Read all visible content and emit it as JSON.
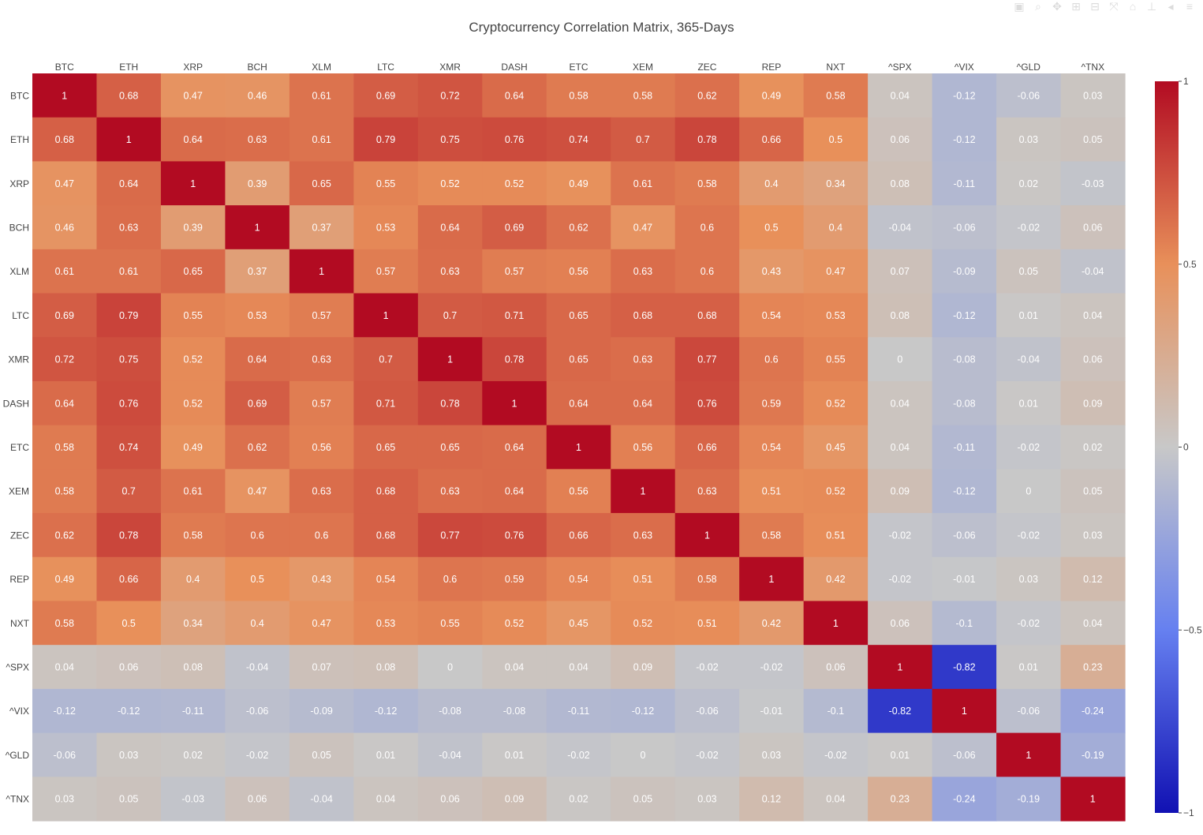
{
  "title": "Cryptocurrency Correlation Matrix, 365-Days",
  "modebar": {
    "icons": [
      "camera-icon",
      "zoom-icon",
      "pan-icon",
      "zoom-in-icon",
      "zoom-out-icon",
      "autoscale-icon",
      "home-icon",
      "spike-lines-icon",
      "hover-closest-icon",
      "hover-compare-icon"
    ]
  },
  "chart_data": {
    "type": "heatmap",
    "title": "Cryptocurrency Correlation Matrix, 365-Days",
    "x": [
      "BTC",
      "ETH",
      "XRP",
      "BCH",
      "XLM",
      "LTC",
      "XMR",
      "DASH",
      "ETC",
      "XEM",
      "ZEC",
      "REP",
      "NXT",
      "^SPX",
      "^VIX",
      "^GLD",
      "^TNX"
    ],
    "y": [
      "BTC",
      "ETH",
      "XRP",
      "BCH",
      "XLM",
      "LTC",
      "XMR",
      "DASH",
      "ETC",
      "XEM",
      "ZEC",
      "REP",
      "NXT",
      "^SPX",
      "^VIX",
      "^GLD",
      "^TNX"
    ],
    "z": [
      [
        1,
        0.68,
        0.47,
        0.46,
        0.61,
        0.69,
        0.72,
        0.64,
        0.58,
        0.58,
        0.62,
        0.49,
        0.58,
        0.04,
        -0.12,
        -0.06,
        0.03
      ],
      [
        0.68,
        1,
        0.64,
        0.63,
        0.61,
        0.79,
        0.75,
        0.76,
        0.74,
        0.7,
        0.78,
        0.66,
        0.5,
        0.06,
        -0.12,
        0.03,
        0.05
      ],
      [
        0.47,
        0.64,
        1,
        0.39,
        0.65,
        0.55,
        0.52,
        0.52,
        0.49,
        0.61,
        0.58,
        0.4,
        0.34,
        0.08,
        -0.11,
        0.02,
        -0.03
      ],
      [
        0.46,
        0.63,
        0.39,
        1,
        0.37,
        0.53,
        0.64,
        0.69,
        0.62,
        0.47,
        0.6,
        0.5,
        0.4,
        -0.04,
        -0.06,
        -0.02,
        0.06
      ],
      [
        0.61,
        0.61,
        0.65,
        0.37,
        1,
        0.57,
        0.63,
        0.57,
        0.56,
        0.63,
        0.6,
        0.43,
        0.47,
        0.07,
        -0.09,
        0.05,
        -0.04
      ],
      [
        0.69,
        0.79,
        0.55,
        0.53,
        0.57,
        1,
        0.7,
        0.71,
        0.65,
        0.68,
        0.68,
        0.54,
        0.53,
        0.08,
        -0.12,
        0.01,
        0.04
      ],
      [
        0.72,
        0.75,
        0.52,
        0.64,
        0.63,
        0.7,
        1,
        0.78,
        0.65,
        0.63,
        0.77,
        0.6,
        0.55,
        0,
        -0.08,
        -0.04,
        0.06
      ],
      [
        0.64,
        0.76,
        0.52,
        0.69,
        0.57,
        0.71,
        0.78,
        1,
        0.64,
        0.64,
        0.76,
        0.59,
        0.52,
        0.04,
        -0.08,
        0.01,
        0.09
      ],
      [
        0.58,
        0.74,
        0.49,
        0.62,
        0.56,
        0.65,
        0.65,
        0.64,
        1,
        0.56,
        0.66,
        0.54,
        0.45,
        0.04,
        -0.11,
        -0.02,
        0.02
      ],
      [
        0.58,
        0.7,
        0.61,
        0.47,
        0.63,
        0.68,
        0.63,
        0.64,
        0.56,
        1,
        0.63,
        0.51,
        0.52,
        0.09,
        -0.12,
        0,
        0.05
      ],
      [
        0.62,
        0.78,
        0.58,
        0.6,
        0.6,
        0.68,
        0.77,
        0.76,
        0.66,
        0.63,
        1,
        0.58,
        0.51,
        -0.02,
        -0.06,
        -0.02,
        0.03
      ],
      [
        0.49,
        0.66,
        0.4,
        0.5,
        0.43,
        0.54,
        0.6,
        0.59,
        0.54,
        0.51,
        0.58,
        1,
        0.42,
        -0.02,
        -0.01,
        0.03,
        0.12
      ],
      [
        0.58,
        0.5,
        0.34,
        0.4,
        0.47,
        0.53,
        0.55,
        0.52,
        0.45,
        0.52,
        0.51,
        0.42,
        1,
        0.06,
        -0.1,
        -0.02,
        0.04
      ],
      [
        0.04,
        0.06,
        0.08,
        -0.04,
        0.07,
        0.08,
        0,
        0.04,
        0.04,
        0.09,
        -0.02,
        -0.02,
        0.06,
        1,
        -0.82,
        0.01,
        0.23
      ],
      [
        -0.12,
        -0.12,
        -0.11,
        -0.06,
        -0.09,
        -0.12,
        -0.08,
        -0.08,
        -0.11,
        -0.12,
        -0.06,
        -0.01,
        -0.1,
        -0.82,
        1,
        -0.06,
        -0.24
      ],
      [
        -0.06,
        0.03,
        0.02,
        -0.02,
        0.05,
        0.01,
        -0.04,
        0.01,
        -0.02,
        0,
        -0.02,
        0.03,
        -0.02,
        0.01,
        -0.06,
        1,
        -0.19
      ],
      [
        0.03,
        0.05,
        -0.03,
        0.06,
        -0.04,
        0.04,
        0.06,
        0.09,
        0.02,
        0.05,
        0.03,
        0.12,
        0.04,
        0.23,
        -0.24,
        -0.19,
        1
      ]
    ],
    "zrange": [
      -1,
      1
    ],
    "colorscale": [
      [
        0,
        "#1111b3"
      ],
      [
        0.25,
        "#6680f0"
      ],
      [
        0.5,
        "#c8c8c8"
      ],
      [
        0.75,
        "#e8905a"
      ],
      [
        1,
        "#b20b22"
      ]
    ],
    "colorbar": {
      "ticks": [
        1,
        0.5,
        0,
        -0.5,
        -1
      ],
      "tick_labels": [
        "1",
        "0.5",
        "0",
        "−0.5",
        "−1"
      ]
    },
    "grid": false,
    "legend": "none"
  }
}
